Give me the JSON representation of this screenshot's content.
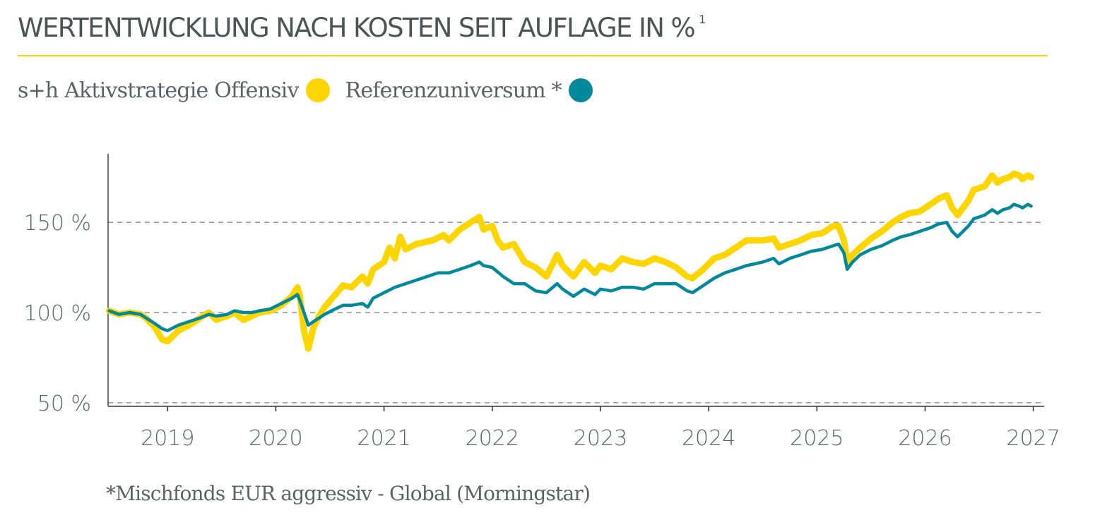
{
  "header": {
    "title": "WERTENTWICKLUNG NACH KOSTEN SEIT AUFLAGE IN %",
    "title_footnote_marker": "1"
  },
  "colors": {
    "accent": "#f2d700",
    "fund": "#ffd500",
    "reference": "#00889b",
    "text": "#4c5556",
    "grid": "#999999"
  },
  "footnote": "*Mischfonds EUR aggressiv - Global (Morningstar)",
  "chart_data": {
    "type": "line",
    "xlabel": "",
    "ylabel": "",
    "x_range": [
      2018.45,
      2027.1
    ],
    "y_range": [
      48,
      188
    ],
    "x_ticks": [
      "2019",
      "2020",
      "2021",
      "2022",
      "2023",
      "2024",
      "2025",
      "2026",
      "2027"
    ],
    "y_ticks": [
      "50 %",
      "100 %",
      "150 %"
    ],
    "grid": "horizontal dashed",
    "legend_position": "top-left",
    "series": [
      {
        "name": "s+h Aktivstrategie Offensiv",
        "color": "#ffd500",
        "points": [
          [
            2018.46,
            101
          ],
          [
            2018.55,
            99
          ],
          [
            2018.65,
            100
          ],
          [
            2018.75,
            99
          ],
          [
            2018.8,
            97
          ],
          [
            2018.88,
            92
          ],
          [
            2018.95,
            85
          ],
          [
            2019.0,
            84
          ],
          [
            2019.1,
            90
          ],
          [
            2019.2,
            93
          ],
          [
            2019.3,
            97
          ],
          [
            2019.38,
            100
          ],
          [
            2019.45,
            96
          ],
          [
            2019.55,
            98
          ],
          [
            2019.62,
            100
          ],
          [
            2019.7,
            96
          ],
          [
            2019.78,
            98
          ],
          [
            2019.85,
            100
          ],
          [
            2019.95,
            101
          ],
          [
            2020.05,
            104
          ],
          [
            2020.15,
            109
          ],
          [
            2020.2,
            114
          ],
          [
            2020.22,
            110
          ],
          [
            2020.26,
            90
          ],
          [
            2020.3,
            80
          ],
          [
            2020.35,
            92
          ],
          [
            2020.4,
            98
          ],
          [
            2020.45,
            103
          ],
          [
            2020.55,
            110
          ],
          [
            2020.62,
            115
          ],
          [
            2020.7,
            114
          ],
          [
            2020.8,
            120
          ],
          [
            2020.85,
            116
          ],
          [
            2020.9,
            124
          ],
          [
            2021.0,
            128
          ],
          [
            2021.05,
            136
          ],
          [
            2021.1,
            130
          ],
          [
            2021.15,
            142
          ],
          [
            2021.2,
            135
          ],
          [
            2021.3,
            138
          ],
          [
            2021.45,
            140
          ],
          [
            2021.55,
            143
          ],
          [
            2021.6,
            140
          ],
          [
            2021.7,
            146
          ],
          [
            2021.8,
            150
          ],
          [
            2021.88,
            153
          ],
          [
            2021.92,
            146
          ],
          [
            2022.0,
            148
          ],
          [
            2022.05,
            140
          ],
          [
            2022.1,
            136
          ],
          [
            2022.2,
            138
          ],
          [
            2022.3,
            128
          ],
          [
            2022.4,
            125
          ],
          [
            2022.5,
            120
          ],
          [
            2022.6,
            132
          ],
          [
            2022.65,
            126
          ],
          [
            2022.75,
            120
          ],
          [
            2022.85,
            128
          ],
          [
            2022.95,
            122
          ],
          [
            2023.0,
            126
          ],
          [
            2023.1,
            124
          ],
          [
            2023.2,
            130
          ],
          [
            2023.3,
            128
          ],
          [
            2023.4,
            127
          ],
          [
            2023.5,
            130
          ],
          [
            2023.6,
            128
          ],
          [
            2023.7,
            125
          ],
          [
            2023.8,
            120
          ],
          [
            2023.85,
            119
          ],
          [
            2023.95,
            124
          ],
          [
            2024.05,
            130
          ],
          [
            2024.15,
            132
          ],
          [
            2024.25,
            136
          ],
          [
            2024.35,
            140
          ],
          [
            2024.5,
            140
          ],
          [
            2024.6,
            141
          ],
          [
            2024.65,
            136
          ],
          [
            2024.75,
            138
          ],
          [
            2024.85,
            140
          ],
          [
            2024.95,
            143
          ],
          [
            2025.05,
            144
          ],
          [
            2025.15,
            148
          ],
          [
            2025.2,
            148
          ],
          [
            2025.25,
            140
          ],
          [
            2025.28,
            128
          ],
          [
            2025.33,
            132
          ],
          [
            2025.4,
            136
          ],
          [
            2025.5,
            141
          ],
          [
            2025.6,
            145
          ],
          [
            2025.7,
            150
          ],
          [
            2025.78,
            153
          ],
          [
            2025.85,
            155
          ],
          [
            2025.95,
            156
          ],
          [
            2026.05,
            160
          ],
          [
            2026.12,
            163
          ],
          [
            2026.2,
            165
          ],
          [
            2026.25,
            158
          ],
          [
            2026.3,
            154
          ],
          [
            2026.4,
            162
          ],
          [
            2026.45,
            168
          ],
          [
            2026.55,
            170
          ],
          [
            2026.62,
            176
          ],
          [
            2026.67,
            172
          ],
          [
            2026.72,
            174
          ],
          [
            2026.78,
            175
          ],
          [
            2026.82,
            177
          ],
          [
            2026.87,
            176
          ],
          [
            2026.9,
            174
          ],
          [
            2026.95,
            176
          ],
          [
            2026.98,
            175
          ]
        ]
      },
      {
        "name": "Referenzuniversum *",
        "color": "#00889b",
        "points": [
          [
            2018.46,
            101
          ],
          [
            2018.55,
            99
          ],
          [
            2018.65,
            100
          ],
          [
            2018.75,
            99
          ],
          [
            2018.8,
            97
          ],
          [
            2018.88,
            94
          ],
          [
            2018.95,
            91
          ],
          [
            2019.0,
            90
          ],
          [
            2019.1,
            93
          ],
          [
            2019.2,
            95
          ],
          [
            2019.3,
            97
          ],
          [
            2019.38,
            99
          ],
          [
            2019.45,
            98
          ],
          [
            2019.55,
            99
          ],
          [
            2019.62,
            101
          ],
          [
            2019.7,
            100
          ],
          [
            2019.78,
            100
          ],
          [
            2019.85,
            101
          ],
          [
            2019.95,
            102
          ],
          [
            2020.05,
            105
          ],
          [
            2020.15,
            108
          ],
          [
            2020.2,
            110
          ],
          [
            2020.22,
            107
          ],
          [
            2020.26,
            100
          ],
          [
            2020.3,
            93
          ],
          [
            2020.35,
            95
          ],
          [
            2020.4,
            97
          ],
          [
            2020.45,
            99
          ],
          [
            2020.55,
            102
          ],
          [
            2020.62,
            104
          ],
          [
            2020.7,
            104
          ],
          [
            2020.8,
            105
          ],
          [
            2020.85,
            103
          ],
          [
            2020.9,
            108
          ],
          [
            2021.0,
            111
          ],
          [
            2021.1,
            114
          ],
          [
            2021.2,
            116
          ],
          [
            2021.3,
            118
          ],
          [
            2021.4,
            120
          ],
          [
            2021.5,
            122
          ],
          [
            2021.6,
            122
          ],
          [
            2021.7,
            124
          ],
          [
            2021.8,
            126
          ],
          [
            2021.88,
            128
          ],
          [
            2021.92,
            126
          ],
          [
            2022.0,
            125
          ],
          [
            2022.1,
            120
          ],
          [
            2022.2,
            116
          ],
          [
            2022.3,
            116
          ],
          [
            2022.4,
            112
          ],
          [
            2022.5,
            111
          ],
          [
            2022.6,
            116
          ],
          [
            2022.65,
            113
          ],
          [
            2022.75,
            109
          ],
          [
            2022.85,
            113
          ],
          [
            2022.95,
            110
          ],
          [
            2023.0,
            113
          ],
          [
            2023.1,
            112
          ],
          [
            2023.2,
            114
          ],
          [
            2023.3,
            114
          ],
          [
            2023.4,
            113
          ],
          [
            2023.5,
            116
          ],
          [
            2023.6,
            116
          ],
          [
            2023.7,
            116
          ],
          [
            2023.8,
            112
          ],
          [
            2023.85,
            111
          ],
          [
            2023.95,
            115
          ],
          [
            2024.05,
            119
          ],
          [
            2024.15,
            122
          ],
          [
            2024.25,
            124
          ],
          [
            2024.35,
            126
          ],
          [
            2024.5,
            128
          ],
          [
            2024.6,
            130
          ],
          [
            2024.65,
            127
          ],
          [
            2024.75,
            130
          ],
          [
            2024.85,
            132
          ],
          [
            2024.95,
            134
          ],
          [
            2025.05,
            135
          ],
          [
            2025.15,
            137
          ],
          [
            2025.2,
            138
          ],
          [
            2025.25,
            133
          ],
          [
            2025.28,
            124
          ],
          [
            2025.33,
            128
          ],
          [
            2025.4,
            132
          ],
          [
            2025.5,
            135
          ],
          [
            2025.6,
            137
          ],
          [
            2025.7,
            140
          ],
          [
            2025.78,
            142
          ],
          [
            2025.85,
            143
          ],
          [
            2025.95,
            145
          ],
          [
            2026.05,
            147
          ],
          [
            2026.12,
            149
          ],
          [
            2026.2,
            150
          ],
          [
            2026.25,
            145
          ],
          [
            2026.3,
            142
          ],
          [
            2026.4,
            148
          ],
          [
            2026.45,
            152
          ],
          [
            2026.55,
            154
          ],
          [
            2026.62,
            157
          ],
          [
            2026.67,
            155
          ],
          [
            2026.72,
            157
          ],
          [
            2026.78,
            158
          ],
          [
            2026.82,
            160
          ],
          [
            2026.87,
            159
          ],
          [
            2026.9,
            158
          ],
          [
            2026.95,
            160
          ],
          [
            2026.98,
            159
          ]
        ]
      }
    ]
  }
}
